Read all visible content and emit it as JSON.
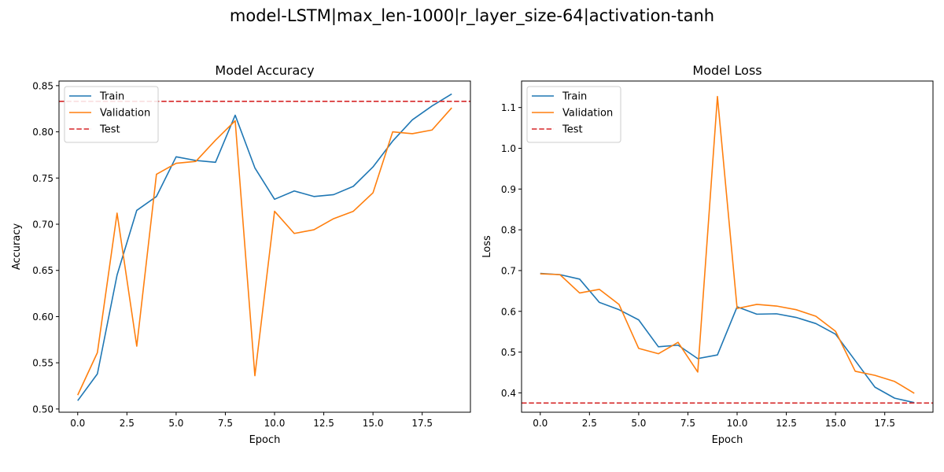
{
  "figure": {
    "suptitle": "model-LSTM|max_len-1000|r_layer_size-64|activation-tanh"
  },
  "chart_data": [
    {
      "type": "line",
      "title": "Model Accuracy",
      "xlabel": "Epoch",
      "ylabel": "Accuracy",
      "xlim": [
        -0.95,
        19.95
      ],
      "ylim": [
        0.4965,
        0.855
      ],
      "xticks": [
        0.0,
        2.5,
        5.0,
        7.5,
        10.0,
        12.5,
        15.0,
        17.5
      ],
      "xtick_labels": [
        "0.0",
        "2.5",
        "5.0",
        "7.5",
        "10.0",
        "12.5",
        "15.0",
        "17.5"
      ],
      "yticks": [
        0.5,
        0.55,
        0.6,
        0.65,
        0.7,
        0.75,
        0.8,
        0.85
      ],
      "ytick_labels": [
        "0.50",
        "0.55",
        "0.60",
        "0.65",
        "0.70",
        "0.75",
        "0.80",
        "0.85"
      ],
      "grid": false,
      "legend_position": "upper-left",
      "x": [
        0,
        1,
        2,
        3,
        4,
        5,
        6,
        7,
        8,
        9,
        10,
        11,
        12,
        13,
        14,
        15,
        16,
        17,
        18,
        19
      ],
      "series": [
        {
          "name": "Train",
          "color": "#1f77b4",
          "style": "solid",
          "values": [
            0.509,
            0.538,
            0.645,
            0.715,
            0.73,
            0.773,
            0.769,
            0.767,
            0.818,
            0.761,
            0.727,
            0.736,
            0.73,
            0.732,
            0.741,
            0.762,
            0.79,
            0.813,
            0.828,
            0.841
          ]
        },
        {
          "name": "Validation",
          "color": "#ff7f0e",
          "style": "solid",
          "values": [
            0.515,
            0.561,
            0.712,
            0.568,
            0.754,
            0.766,
            0.768,
            0.791,
            0.812,
            0.536,
            0.714,
            0.69,
            0.694,
            0.706,
            0.714,
            0.734,
            0.8,
            0.798,
            0.802,
            0.826
          ]
        }
      ],
      "hlines": [
        {
          "name": "Test",
          "color": "#d62728",
          "style": "dashed",
          "value": 0.833
        }
      ]
    },
    {
      "type": "line",
      "title": "Model Loss",
      "xlabel": "Epoch",
      "ylabel": "Loss",
      "xlim": [
        -0.95,
        19.95
      ],
      "ylim": [
        0.3525,
        1.165
      ],
      "xticks": [
        0.0,
        2.5,
        5.0,
        7.5,
        10.0,
        12.5,
        15.0,
        17.5
      ],
      "xtick_labels": [
        "0.0",
        "2.5",
        "5.0",
        "7.5",
        "10.0",
        "12.5",
        "15.0",
        "17.5"
      ],
      "yticks": [
        0.4,
        0.5,
        0.6,
        0.7,
        0.8,
        0.9,
        1.0,
        1.1
      ],
      "ytick_labels": [
        "0.4",
        "0.5",
        "0.6",
        "0.7",
        "0.8",
        "0.9",
        "1.0",
        "1.1"
      ],
      "grid": false,
      "legend_position": "upper-left",
      "x": [
        0,
        1,
        2,
        3,
        4,
        5,
        6,
        7,
        8,
        9,
        10,
        11,
        12,
        13,
        14,
        15,
        16,
        17,
        18,
        19
      ],
      "series": [
        {
          "name": "Train",
          "color": "#1f77b4",
          "style": "solid",
          "values": [
            0.693,
            0.69,
            0.679,
            0.622,
            0.604,
            0.579,
            0.513,
            0.517,
            0.484,
            0.493,
            0.611,
            0.593,
            0.594,
            0.585,
            0.57,
            0.544,
            0.479,
            0.414,
            0.387,
            0.376
          ]
        },
        {
          "name": "Validation",
          "color": "#ff7f0e",
          "style": "solid",
          "values": [
            0.692,
            0.69,
            0.645,
            0.654,
            0.617,
            0.509,
            0.496,
            0.524,
            0.451,
            1.127,
            0.607,
            0.617,
            0.613,
            0.604,
            0.588,
            0.551,
            0.453,
            0.443,
            0.428,
            0.399
          ]
        }
      ],
      "hlines": [
        {
          "name": "Test",
          "color": "#d62728",
          "style": "dashed",
          "value": 0.375
        }
      ]
    }
  ]
}
